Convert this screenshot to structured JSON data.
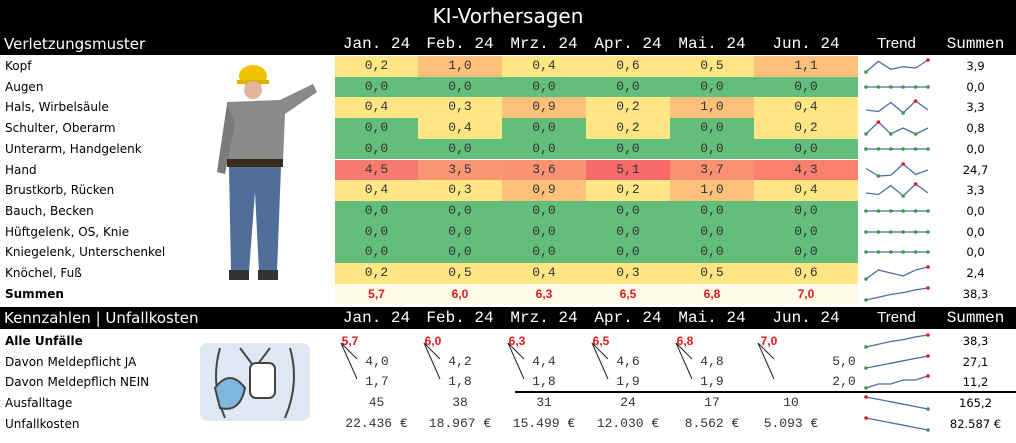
{
  "title": "KI-Vorhersagen",
  "months": [
    "Jan. 24",
    "Feb. 24",
    "Mrz. 24",
    "Apr. 24",
    "Mai. 24",
    "Jun. 24"
  ],
  "trend_label": "Trend",
  "sum_label": "Summen",
  "section1": {
    "label": "Verletzungsmuster",
    "rows": [
      {
        "label": "Kopf",
        "values": [
          "0,2",
          "1,0",
          "0,4",
          "0,6",
          "0,5",
          "1,1"
        ],
        "sum": "3,9"
      },
      {
        "label": "Augen",
        "values": [
          "0,0",
          "0,0",
          "0,0",
          "0,0",
          "0,0",
          "0,0"
        ],
        "sum": "0,0"
      },
      {
        "label": "Hals, Wirbelsäule",
        "values": [
          "0,4",
          "0,3",
          "0,9",
          "0,2",
          "1,0",
          "0,4"
        ],
        "sum": "3,3"
      },
      {
        "label": "Schulter, Oberarm",
        "values": [
          "0,0",
          "0,4",
          "0,0",
          "0,2",
          "0,0",
          "0,2"
        ],
        "sum": "0,8"
      },
      {
        "label": "Unterarm, Handgelenk",
        "values": [
          "0,0",
          "0,0",
          "0,0",
          "0,0",
          "0,0",
          "0,0"
        ],
        "sum": "0,0"
      },
      {
        "label": "Hand",
        "values": [
          "4,5",
          "3,5",
          "3,6",
          "5,1",
          "3,7",
          "4,3"
        ],
        "sum": "24,7"
      },
      {
        "label": "Brustkorb, Rücken",
        "values": [
          "0,4",
          "0,3",
          "0,9",
          "0,2",
          "1,0",
          "0,4"
        ],
        "sum": "3,3"
      },
      {
        "label": "Bauch, Becken",
        "values": [
          "0,0",
          "0,0",
          "0,0",
          "0,0",
          "0,0",
          "0,0"
        ],
        "sum": "0,0"
      },
      {
        "label": "Hüftgelenk, OS, Knie",
        "values": [
          "0,0",
          "0,0",
          "0,0",
          "0,0",
          "0,0",
          "0,0"
        ],
        "sum": "0,0"
      },
      {
        "label": "Kniegelenk, Unterschenkel",
        "values": [
          "0,0",
          "0,0",
          "0,0",
          "0,0",
          "0,0",
          "0,0"
        ],
        "sum": "0,0"
      },
      {
        "label": "Knöchel, Fuß",
        "values": [
          "0,2",
          "0,5",
          "0,4",
          "0,3",
          "0,5",
          "0,6"
        ],
        "sum": "2,4"
      }
    ],
    "totals": {
      "label": "Summen",
      "values": [
        "5,7",
        "6,0",
        "6,3",
        "6,5",
        "6,8",
        "7,0"
      ],
      "sum": "38,3"
    }
  },
  "section2": {
    "label": "Kennzahlen | Unfallkosten",
    "alle": {
      "label": "Alle Unfälle",
      "values": [
        "5,7",
        "6,0",
        "6,3",
        "6,5",
        "6,8",
        "7,0"
      ],
      "sum": "38,3"
    },
    "ja": {
      "label": "Davon Meldepflicht JA",
      "values": [
        "4,0",
        "4,2",
        "4,4",
        "4,6",
        "4,8",
        "5,0"
      ],
      "sum": "27,1"
    },
    "nein": {
      "label": "Davon Meldepflich NEIN",
      "values": [
        "1,7",
        "1,8",
        "1,8",
        "1,9",
        "1,9",
        "2,0"
      ],
      "sum": "11,2"
    },
    "ausfall": {
      "label": "Ausfalltage",
      "values": [
        "45",
        "38",
        "31",
        "24",
        "17",
        "10"
      ],
      "sum": "165,2"
    },
    "kosten": {
      "label": "Unfallkosten",
      "values": [
        "22.436 €",
        "18.967 €",
        "15.499 €",
        "12.030 €",
        "8.562 €",
        "5.093 €"
      ],
      "sum": "82.587 €"
    }
  },
  "colors": {
    "green": "#63be7b",
    "yellow": "#ffe684",
    "orange": "#fcc07a",
    "red": "#f8696b",
    "total_red": "#e0191e"
  }
}
